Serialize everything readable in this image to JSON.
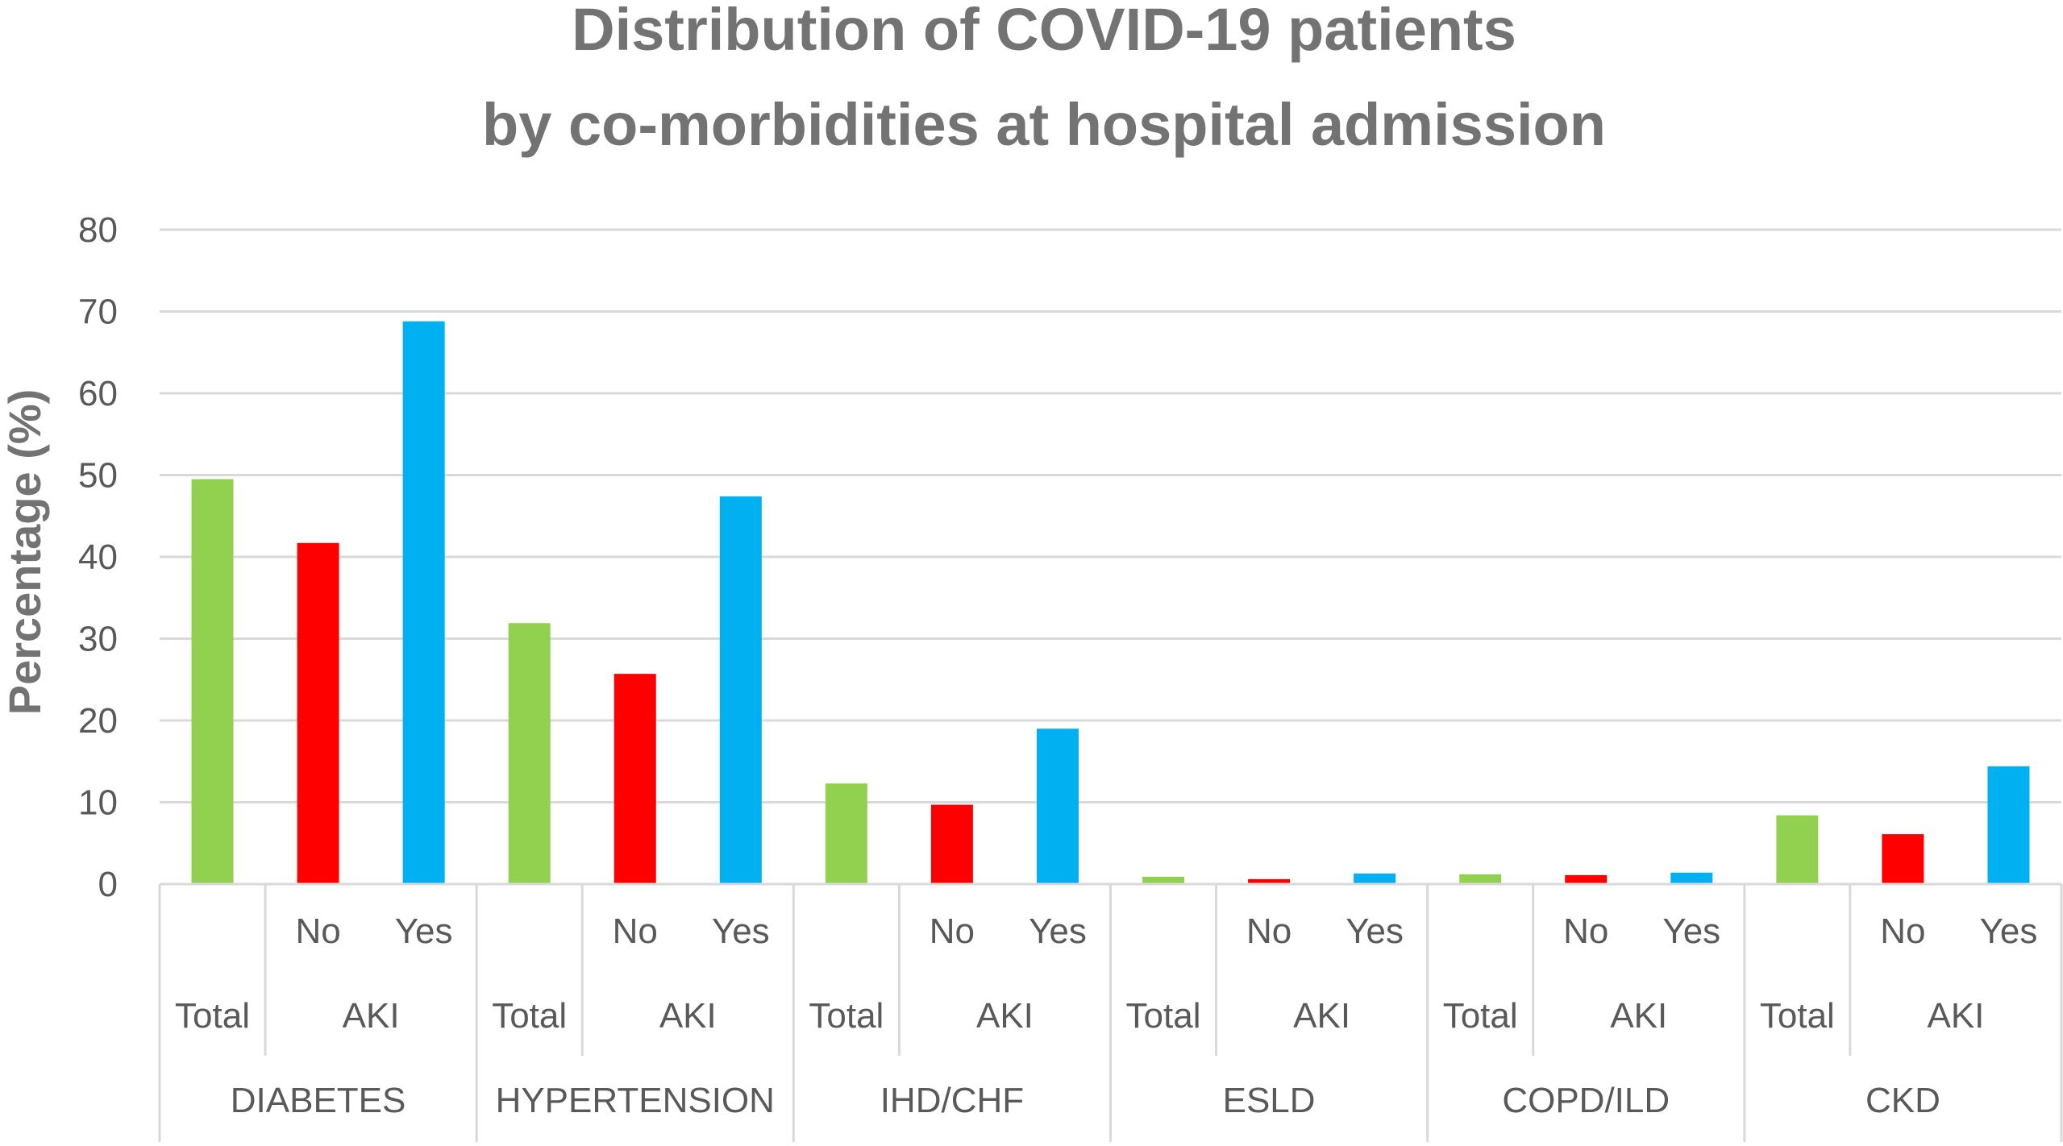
{
  "chart_data": {
    "type": "bar",
    "title": "Distribution of COVID-19 patients",
    "subtitle": "by co-morbidities at hospital admission",
    "ylabel": "Percentage (%)",
    "xlabel": "",
    "ylim": [
      0,
      80
    ],
    "yticks": [
      0,
      10,
      20,
      30,
      40,
      50,
      60,
      70,
      80
    ],
    "grid": true,
    "legend": "none",
    "sublevel_label": "AKI",
    "groups": [
      {
        "name": "DIABETES",
        "bars": [
          {
            "label": "Total",
            "value": 49.5,
            "color": "#92d050"
          },
          {
            "label": "No",
            "value": 41.7,
            "color": "#ff0000"
          },
          {
            "label": "Yes",
            "value": 68.8,
            "color": "#00b0f0"
          }
        ]
      },
      {
        "name": "HYPERTENSION",
        "bars": [
          {
            "label": "Total",
            "value": 31.9,
            "color": "#92d050"
          },
          {
            "label": "No",
            "value": 25.7,
            "color": "#ff0000"
          },
          {
            "label": "Yes",
            "value": 47.4,
            "color": "#00b0f0"
          }
        ]
      },
      {
        "name": "IHD/CHF",
        "bars": [
          {
            "label": "Total",
            "value": 12.3,
            "color": "#92d050"
          },
          {
            "label": "No",
            "value": 9.7,
            "color": "#ff0000"
          },
          {
            "label": "Yes",
            "value": 19.0,
            "color": "#00b0f0"
          }
        ]
      },
      {
        "name": "ESLD",
        "bars": [
          {
            "label": "Total",
            "value": 0.9,
            "color": "#92d050"
          },
          {
            "label": "No",
            "value": 0.6,
            "color": "#ff0000"
          },
          {
            "label": "Yes",
            "value": 1.3,
            "color": "#00b0f0"
          }
        ]
      },
      {
        "name": "COPD/ILD",
        "bars": [
          {
            "label": "Total",
            "value": 1.2,
            "color": "#92d050"
          },
          {
            "label": "No",
            "value": 1.1,
            "color": "#ff0000"
          },
          {
            "label": "Yes",
            "value": 1.4,
            "color": "#00b0f0"
          }
        ]
      },
      {
        "name": "CKD",
        "bars": [
          {
            "label": "Total",
            "value": 8.4,
            "color": "#92d050"
          },
          {
            "label": "No",
            "value": 6.1,
            "color": "#ff0000"
          },
          {
            "label": "Yes",
            "value": 14.4,
            "color": "#00b0f0"
          }
        ]
      }
    ]
  }
}
